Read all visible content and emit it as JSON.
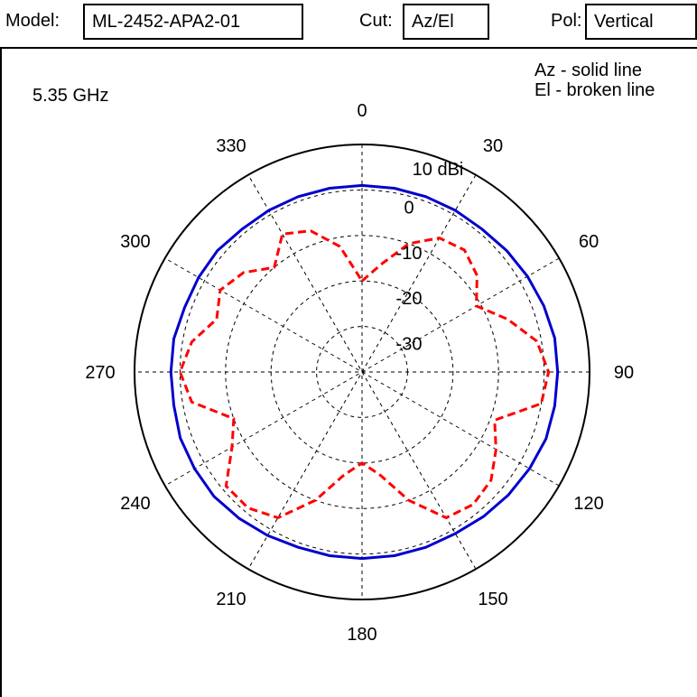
{
  "header": {
    "model_label": "Model:",
    "model_value": "ML-2452-APA2-01",
    "cut_label": "Cut:",
    "cut_value": "Az/El",
    "pol_label": "Pol:",
    "pol_value": "Vertical"
  },
  "chart_data": {
    "type": "polar",
    "frequency_label": "5.35 GHz",
    "angle_unit": "deg",
    "angle_ticks": [
      "0",
      "30",
      "60",
      "90",
      "120",
      "150",
      "180",
      "210",
      "240",
      "270",
      "300",
      "330"
    ],
    "radial_unit": "dBi",
    "radial_ticks": [
      "10 dBi",
      "0",
      "-10",
      "-20",
      "-30"
    ],
    "radial_range_dbi": [
      -40,
      10
    ],
    "legend": [
      "Az - solid line",
      "El - broken line"
    ],
    "colors": {
      "az": "#0000cc",
      "el": "#ff0000",
      "grid": "#000000"
    },
    "series": [
      {
        "label": "Az - solid line",
        "style": "solid",
        "angles_deg": [
          0,
          10,
          20,
          30,
          40,
          50,
          60,
          70,
          80,
          90,
          100,
          110,
          120,
          130,
          140,
          150,
          160,
          170,
          180,
          190,
          200,
          210,
          220,
          230,
          240,
          250,
          260,
          270,
          280,
          290,
          300,
          310,
          320,
          330,
          340,
          350
        ],
        "gain_dbi": [
          1,
          1,
          1,
          1,
          1,
          1.5,
          2,
          2.5,
          3,
          3,
          3,
          3,
          2.5,
          2,
          1.5,
          1,
          1,
          1,
          1,
          1,
          1,
          1.5,
          2,
          2.5,
          2.5,
          2.5,
          2,
          2,
          2,
          1.5,
          1.5,
          1.5,
          1,
          1,
          1,
          1
        ]
      },
      {
        "label": "El - broken line",
        "style": "dashed",
        "angles_deg": [
          0,
          10,
          20,
          30,
          40,
          50,
          60,
          70,
          80,
          90,
          100,
          110,
          120,
          130,
          140,
          150,
          160,
          170,
          180,
          190,
          200,
          210,
          220,
          230,
          240,
          250,
          260,
          270,
          280,
          290,
          300,
          310,
          320,
          330,
          340,
          350
        ],
        "gain_dbi": [
          -20,
          -16,
          -10,
          -6,
          -5,
          -7,
          -11,
          -6,
          -1,
          1,
          0,
          -9,
          -6,
          -3,
          -2,
          -3,
          -10,
          -17,
          -20,
          -17,
          -10,
          -3,
          -1,
          -1,
          -7,
          -10,
          -2,
          0,
          -2,
          -6,
          -4,
          -6,
          -10,
          -5,
          -7,
          -12
        ]
      }
    ]
  }
}
